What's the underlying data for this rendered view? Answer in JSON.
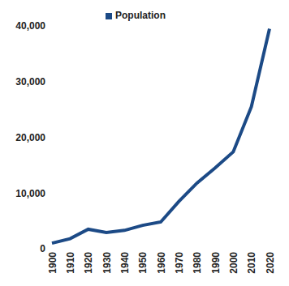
{
  "chart_data": {
    "type": "line",
    "categories": [
      "1900",
      "1910",
      "1920",
      "1930",
      "1940",
      "1950",
      "1960",
      "1970",
      "1980",
      "1990",
      "2000",
      "2010",
      "2020"
    ],
    "series": [
      {
        "name": "Population",
        "color": "#1c4a86",
        "values": [
          1000,
          1800,
          3500,
          2900,
          3300,
          4200,
          4800,
          8500,
          11800,
          14500,
          17400,
          25500,
          39500
        ]
      }
    ],
    "ylim": [
      0,
      40000
    ],
    "yticks": [
      0,
      {
        "value": 10000,
        "label": "10,000"
      },
      {
        "value": 20000,
        "label": "20,000"
      },
      {
        "value": 30000,
        "label": "30,000"
      },
      {
        "value": 40000,
        "label": "40,000"
      }
    ],
    "grid": false,
    "legend": "top"
  }
}
